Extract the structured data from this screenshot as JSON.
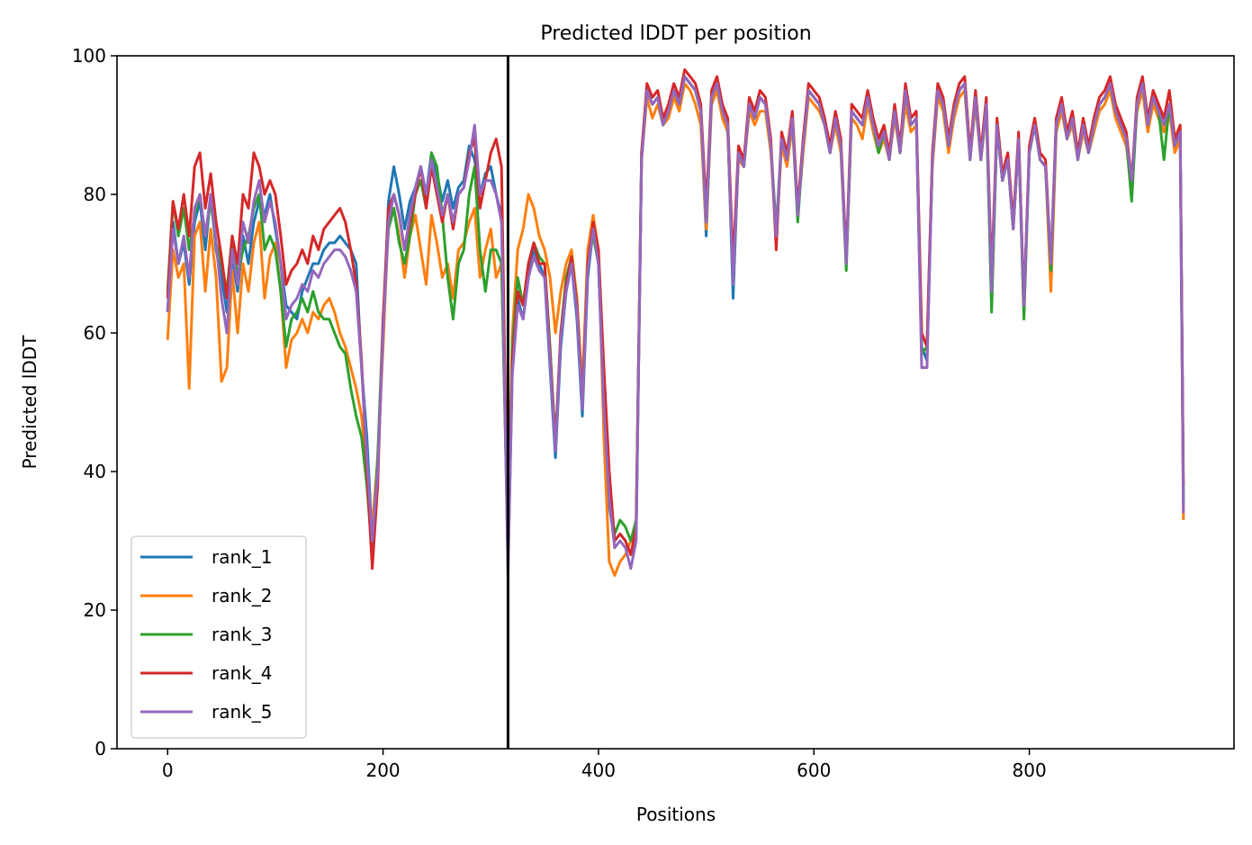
{
  "chart_data": {
    "type": "line",
    "title": "Predicted lDDT per position",
    "xlabel": "Positions",
    "ylabel": "Predicted lDDT",
    "xlim": [
      -47,
      990
    ],
    "ylim": [
      0,
      100
    ],
    "xticks": [
      0,
      200,
      400,
      600,
      800
    ],
    "yticks": [
      0,
      20,
      40,
      60,
      80,
      100
    ],
    "grid": false,
    "legend_position": "lower-left",
    "vline": 316,
    "x": [
      0,
      5,
      10,
      15,
      20,
      25,
      30,
      35,
      40,
      45,
      50,
      55,
      60,
      65,
      70,
      75,
      80,
      85,
      90,
      95,
      100,
      105,
      110,
      115,
      120,
      125,
      130,
      135,
      140,
      145,
      150,
      155,
      160,
      165,
      170,
      175,
      180,
      185,
      190,
      195,
      200,
      205,
      210,
      215,
      220,
      225,
      230,
      235,
      240,
      245,
      250,
      255,
      260,
      265,
      270,
      275,
      280,
      285,
      290,
      295,
      300,
      305,
      310,
      316,
      320,
      325,
      330,
      335,
      340,
      345,
      350,
      355,
      360,
      365,
      370,
      375,
      380,
      385,
      390,
      395,
      400,
      405,
      410,
      415,
      420,
      425,
      430,
      435,
      440,
      445,
      450,
      455,
      460,
      465,
      470,
      475,
      480,
      485,
      490,
      495,
      500,
      505,
      510,
      515,
      520,
      525,
      530,
      535,
      540,
      545,
      550,
      555,
      560,
      565,
      570,
      575,
      580,
      585,
      590,
      595,
      600,
      605,
      610,
      615,
      620,
      625,
      630,
      635,
      640,
      645,
      650,
      655,
      660,
      665,
      670,
      675,
      680,
      685,
      690,
      695,
      700,
      705,
      710,
      715,
      720,
      725,
      730,
      735,
      740,
      745,
      750,
      755,
      760,
      765,
      770,
      775,
      780,
      785,
      790,
      795,
      800,
      805,
      810,
      815,
      820,
      825,
      830,
      835,
      840,
      845,
      850,
      855,
      860,
      865,
      870,
      875,
      880,
      885,
      890,
      895,
      900,
      905,
      910,
      915,
      920,
      925,
      930,
      935,
      940,
      943
    ],
    "series": [
      {
        "name": "rank_1",
        "color": "#1f77b4",
        "values": [
          63,
          76,
          70,
          73,
          67,
          76,
          79,
          72,
          80,
          72,
          68,
          63,
          71,
          66,
          74,
          70,
          76,
          79,
          77,
          80,
          75,
          70,
          64,
          63,
          62,
          66,
          68,
          70,
          70,
          72,
          73,
          73,
          74,
          73,
          72,
          70,
          55,
          45,
          30,
          40,
          60,
          79,
          84,
          80,
          75,
          79,
          81,
          84,
          80,
          86,
          83,
          79,
          82,
          78,
          81,
          82,
          87,
          85,
          80,
          83,
          84,
          80,
          77,
          26,
          55,
          65,
          62,
          68,
          72,
          70,
          68,
          55,
          42,
          58,
          66,
          70,
          62,
          48,
          68,
          75,
          70,
          50,
          35,
          30,
          31,
          30,
          28,
          31,
          85,
          95,
          93,
          94,
          90,
          92,
          95,
          93,
          97,
          96,
          95,
          92,
          74,
          94,
          96,
          92,
          90,
          65,
          86,
          84,
          93,
          91,
          94,
          93,
          87,
          73,
          88,
          85,
          91,
          77,
          87,
          95,
          94,
          93,
          90,
          86,
          91,
          87,
          70,
          92,
          91,
          90,
          94,
          90,
          87,
          89,
          85,
          92,
          86,
          95,
          90,
          91,
          58,
          56,
          85,
          95,
          93,
          87,
          92,
          95,
          96,
          85,
          94,
          85,
          93,
          64,
          90,
          82,
          85,
          75,
          88,
          63,
          86,
          90,
          85,
          84,
          70,
          90,
          93,
          88,
          91,
          85,
          90,
          86,
          90,
          93,
          94,
          96,
          92,
          90,
          88,
          82,
          93,
          96,
          90,
          94,
          92,
          90,
          93,
          87,
          89,
          35
        ]
      },
      {
        "name": "rank_2",
        "color": "#ff7f0e",
        "values": [
          59,
          72,
          68,
          70,
          52,
          74,
          76,
          66,
          75,
          68,
          53,
          55,
          69,
          60,
          70,
          66,
          73,
          76,
          65,
          71,
          73,
          66,
          55,
          59,
          60,
          62,
          60,
          63,
          62,
          64,
          65,
          63,
          60,
          58,
          55,
          52,
          48,
          40,
          32,
          42,
          58,
          76,
          78,
          74,
          68,
          74,
          77,
          72,
          67,
          77,
          73,
          68,
          70,
          65,
          72,
          73,
          76,
          78,
          68,
          72,
          75,
          68,
          70,
          30,
          60,
          72,
          75,
          80,
          78,
          74,
          72,
          68,
          60,
          66,
          70,
          72,
          65,
          52,
          72,
          77,
          72,
          45,
          27,
          25,
          27,
          28,
          30,
          32,
          85,
          94,
          91,
          93,
          90,
          91,
          94,
          92,
          96,
          95,
          93,
          90,
          75,
          93,
          95,
          91,
          89,
          68,
          85,
          84,
          92,
          90,
          92,
          92,
          86,
          74,
          87,
          84,
          90,
          77,
          86,
          94,
          93,
          92,
          90,
          86,
          90,
          86,
          70,
          91,
          90,
          88,
          93,
          89,
          86,
          88,
          85,
          91,
          86,
          93,
          89,
          90,
          60,
          58,
          84,
          94,
          92,
          86,
          91,
          94,
          95,
          85,
          93,
          85,
          92,
          65,
          90,
          82,
          85,
          75,
          88,
          64,
          86,
          90,
          85,
          84,
          66,
          89,
          92,
          88,
          90,
          85,
          89,
          86,
          89,
          92,
          93,
          95,
          91,
          89,
          87,
          81,
          92,
          95,
          89,
          93,
          91,
          89,
          92,
          86,
          88,
          33
        ]
      },
      {
        "name": "rank_3",
        "color": "#2ca02c",
        "values": [
          66,
          79,
          74,
          78,
          72,
          77,
          80,
          74,
          79,
          73,
          70,
          66,
          74,
          68,
          72,
          74,
          78,
          80,
          72,
          74,
          72,
          66,
          58,
          62,
          63,
          65,
          63,
          66,
          63,
          62,
          62,
          60,
          58,
          57,
          52,
          48,
          45,
          38,
          28,
          42,
          62,
          75,
          78,
          73,
          70,
          74,
          80,
          82,
          78,
          86,
          84,
          77,
          68,
          62,
          70,
          72,
          80,
          84,
          72,
          66,
          72,
          72,
          70,
          28,
          58,
          68,
          64,
          70,
          73,
          71,
          70,
          58,
          44,
          60,
          68,
          71,
          64,
          50,
          70,
          74,
          70,
          50,
          36,
          31,
          33,
          32,
          30,
          33,
          86,
          95,
          93,
          94,
          90,
          92,
          95,
          93,
          97,
          96,
          95,
          92,
          76,
          94,
          96,
          92,
          90,
          67,
          86,
          84,
          93,
          91,
          94,
          93,
          87,
          75,
          88,
          86,
          91,
          76,
          87,
          95,
          94,
          93,
          90,
          86,
          91,
          87,
          69,
          92,
          91,
          90,
          94,
          90,
          86,
          89,
          85,
          92,
          86,
          95,
          90,
          91,
          57,
          58,
          85,
          95,
          93,
          87,
          92,
          95,
          96,
          85,
          94,
          85,
          93,
          63,
          90,
          82,
          85,
          75,
          88,
          62,
          86,
          90,
          85,
          84,
          69,
          90,
          93,
          88,
          91,
          85,
          90,
          86,
          90,
          93,
          94,
          96,
          92,
          90,
          88,
          79,
          93,
          96,
          90,
          94,
          92,
          85,
          93,
          87,
          89,
          36
        ]
      },
      {
        "name": "rank_4",
        "color": "#d62728",
        "values": [
          65,
          79,
          75,
          80,
          74,
          84,
          86,
          78,
          83,
          76,
          71,
          65,
          74,
          70,
          80,
          78,
          86,
          84,
          80,
          82,
          80,
          74,
          67,
          69,
          70,
          72,
          70,
          74,
          72,
          75,
          76,
          77,
          78,
          76,
          72,
          67,
          56,
          40,
          26,
          38,
          62,
          78,
          80,
          77,
          72,
          76,
          80,
          84,
          78,
          84,
          80,
          76,
          80,
          75,
          80,
          81,
          86,
          88,
          78,
          82,
          86,
          88,
          84,
          27,
          56,
          66,
          64,
          70,
          73,
          70,
          70,
          57,
          44,
          60,
          67,
          71,
          64,
          50,
          70,
          76,
          72,
          55,
          40,
          30,
          31,
          30,
          28,
          32,
          86,
          96,
          94,
          95,
          91,
          93,
          96,
          94,
          98,
          97,
          96,
          93,
          78,
          95,
          97,
          93,
          91,
          70,
          87,
          85,
          94,
          92,
          95,
          94,
          88,
          72,
          89,
          86,
          92,
          78,
          88,
          96,
          95,
          94,
          91,
          87,
          92,
          88,
          71,
          93,
          92,
          91,
          95,
          91,
          88,
          90,
          86,
          93,
          87,
          96,
          91,
          92,
          60,
          58,
          86,
          96,
          94,
          88,
          93,
          96,
          97,
          86,
          95,
          86,
          94,
          68,
          91,
          83,
          86,
          76,
          89,
          64,
          87,
          91,
          86,
          85,
          70,
          91,
          94,
          89,
          92,
          86,
          91,
          87,
          91,
          94,
          95,
          97,
          93,
          91,
          89,
          82,
          94,
          97,
          91,
          95,
          93,
          91,
          95,
          88,
          90,
          38
        ]
      },
      {
        "name": "rank_5",
        "color": "#9467bd",
        "values": [
          63,
          75,
          70,
          74,
          68,
          78,
          80,
          74,
          80,
          73,
          65,
          60,
          72,
          67,
          76,
          73,
          79,
          82,
          76,
          79,
          76,
          70,
          62,
          64,
          65,
          67,
          66,
          69,
          68,
          70,
          71,
          72,
          72,
          71,
          69,
          66,
          55,
          42,
          30,
          40,
          60,
          76,
          80,
          77,
          72,
          77,
          81,
          84,
          80,
          85,
          81,
          77,
          80,
          76,
          80,
          81,
          85,
          90,
          80,
          82,
          82,
          80,
          76,
          25,
          54,
          64,
          62,
          68,
          71,
          69,
          68,
          56,
          43,
          59,
          66,
          70,
          63,
          49,
          69,
          75,
          70,
          49,
          36,
          29,
          30,
          29,
          26,
          30,
          85,
          95,
          93,
          94,
          90,
          92,
          95,
          93,
          97,
          96,
          95,
          92,
          76,
          94,
          96,
          92,
          90,
          67,
          86,
          84,
          93,
          91,
          94,
          93,
          87,
          74,
          88,
          85,
          91,
          77,
          87,
          95,
          94,
          93,
          90,
          86,
          91,
          87,
          70,
          92,
          91,
          90,
          94,
          90,
          87,
          89,
          85,
          92,
          86,
          95,
          90,
          91,
          55,
          55,
          85,
          95,
          93,
          87,
          92,
          95,
          96,
          85,
          94,
          85,
          93,
          66,
          90,
          82,
          85,
          75,
          88,
          64,
          86,
          90,
          85,
          84,
          70,
          90,
          93,
          88,
          91,
          85,
          90,
          86,
          90,
          93,
          94,
          96,
          92,
          90,
          88,
          82,
          93,
          96,
          90,
          94,
          92,
          90,
          93,
          87,
          89,
          34
        ]
      }
    ]
  }
}
